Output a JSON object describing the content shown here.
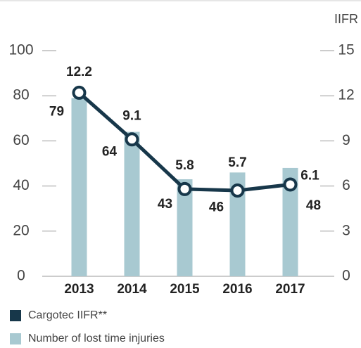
{
  "chart_data": {
    "type": "bar",
    "categories": [
      "2013",
      "2014",
      "2015",
      "2016",
      "2017"
    ],
    "series": [
      {
        "name": "Number of lost time injuries",
        "type": "bar",
        "color": "#a8c9d1",
        "values": [
          79,
          64,
          43,
          46,
          48
        ]
      },
      {
        "name": "Cargotec IIFR**",
        "type": "line",
        "axis": "y2",
        "color": "#17374a",
        "values": [
          12.2,
          9.1,
          5.8,
          5.7,
          6.1
        ]
      }
    ],
    "y2_label": "IIFR",
    "ylim": [
      0,
      100
    ],
    "yticks": [
      0,
      20,
      40,
      60,
      80,
      100
    ],
    "y2lim": [
      0,
      15
    ],
    "y2ticks": [
      0,
      3,
      6,
      9,
      12,
      15
    ],
    "legend": "bottom-left"
  }
}
